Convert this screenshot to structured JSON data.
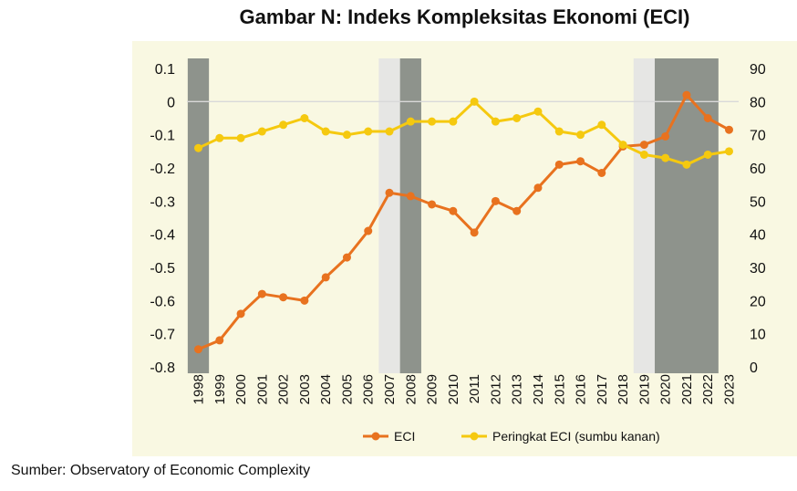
{
  "chart_data": {
    "type": "line",
    "title": "Gambar N: Indeks Kompleksitas Ekonomi (ECI)",
    "x": [
      "1998",
      "1999",
      "2000",
      "2001",
      "2002",
      "2003",
      "2004",
      "2005",
      "2006",
      "2007",
      "2008",
      "2009",
      "2010",
      "2011",
      "2012",
      "2013",
      "2014",
      "2015",
      "2016",
      "2017",
      "2018",
      "2019",
      "2020",
      "2021",
      "2022",
      "2023"
    ],
    "series": [
      {
        "name": "ECI",
        "axis": "left",
        "color": "#e8721f",
        "values": [
          -0.747,
          -0.72,
          -0.64,
          -0.58,
          -0.59,
          -0.6,
          -0.53,
          -0.47,
          -0.39,
          -0.275,
          -0.285,
          -0.31,
          -0.33,
          -0.395,
          -0.3,
          -0.33,
          -0.26,
          -0.19,
          -0.18,
          -0.215,
          -0.135,
          -0.13,
          -0.105,
          0.02,
          -0.05,
          -0.085
        ]
      },
      {
        "name": "Peringkat ECI (sumbu kanan)",
        "axis": "right",
        "color": "#f5c90f",
        "values": [
          66,
          69,
          69,
          71,
          73,
          75,
          71,
          70,
          71,
          71,
          74,
          74,
          74,
          80,
          74,
          75,
          77,
          71,
          70,
          73,
          67,
          64,
          63,
          61,
          64,
          65
        ]
      }
    ],
    "ylim_left": [
      -0.8,
      0.1
    ],
    "yticks_left": [
      "0.1",
      "0",
      "-0.1",
      "-0.2",
      "-0.3",
      "-0.4",
      "-0.5",
      "-0.6",
      "-0.7",
      "-0.8"
    ],
    "ylim_right": [
      0,
      90
    ],
    "yticks_right": [
      "90",
      "80",
      "70",
      "60",
      "50",
      "40",
      "30",
      "20",
      "10",
      "0"
    ],
    "shaded": [
      {
        "from": "1998",
        "to": "1998",
        "shade": "dark"
      },
      {
        "from": "2007",
        "to": "2007",
        "shade": "light"
      },
      {
        "from": "2008",
        "to": "2008",
        "shade": "dark"
      },
      {
        "from": "2019",
        "to": "2019",
        "shade": "light"
      },
      {
        "from": "2020",
        "to": "2022",
        "shade": "dark"
      }
    ],
    "legend_position": "bottom",
    "source": "Sumber: Observatory of Economic Complexity"
  }
}
